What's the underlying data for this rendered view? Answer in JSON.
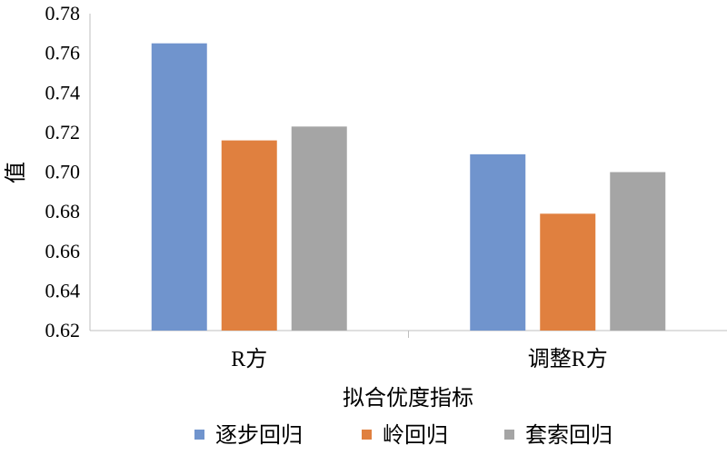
{
  "chart_data": {
    "type": "bar",
    "xlabel": "拟合优度指标",
    "ylabel": "值",
    "categories": [
      "R方",
      "调整R方"
    ],
    "series": [
      {
        "name": "逐步回归",
        "color": "#7094cd",
        "values": [
          0.765,
          0.709
        ]
      },
      {
        "name": "岭回归",
        "color": "#e0803f",
        "values": [
          0.716,
          0.679
        ]
      },
      {
        "name": "套索回归",
        "color": "#a5a5a5",
        "values": [
          0.723,
          0.7
        ]
      }
    ],
    "ylim": [
      0.62,
      0.78
    ],
    "yticks": [
      "0.62",
      "0.64",
      "0.66",
      "0.68",
      "0.70",
      "0.72",
      "0.74",
      "0.76",
      "0.78"
    ],
    "grid": false,
    "legend": "bottom"
  }
}
